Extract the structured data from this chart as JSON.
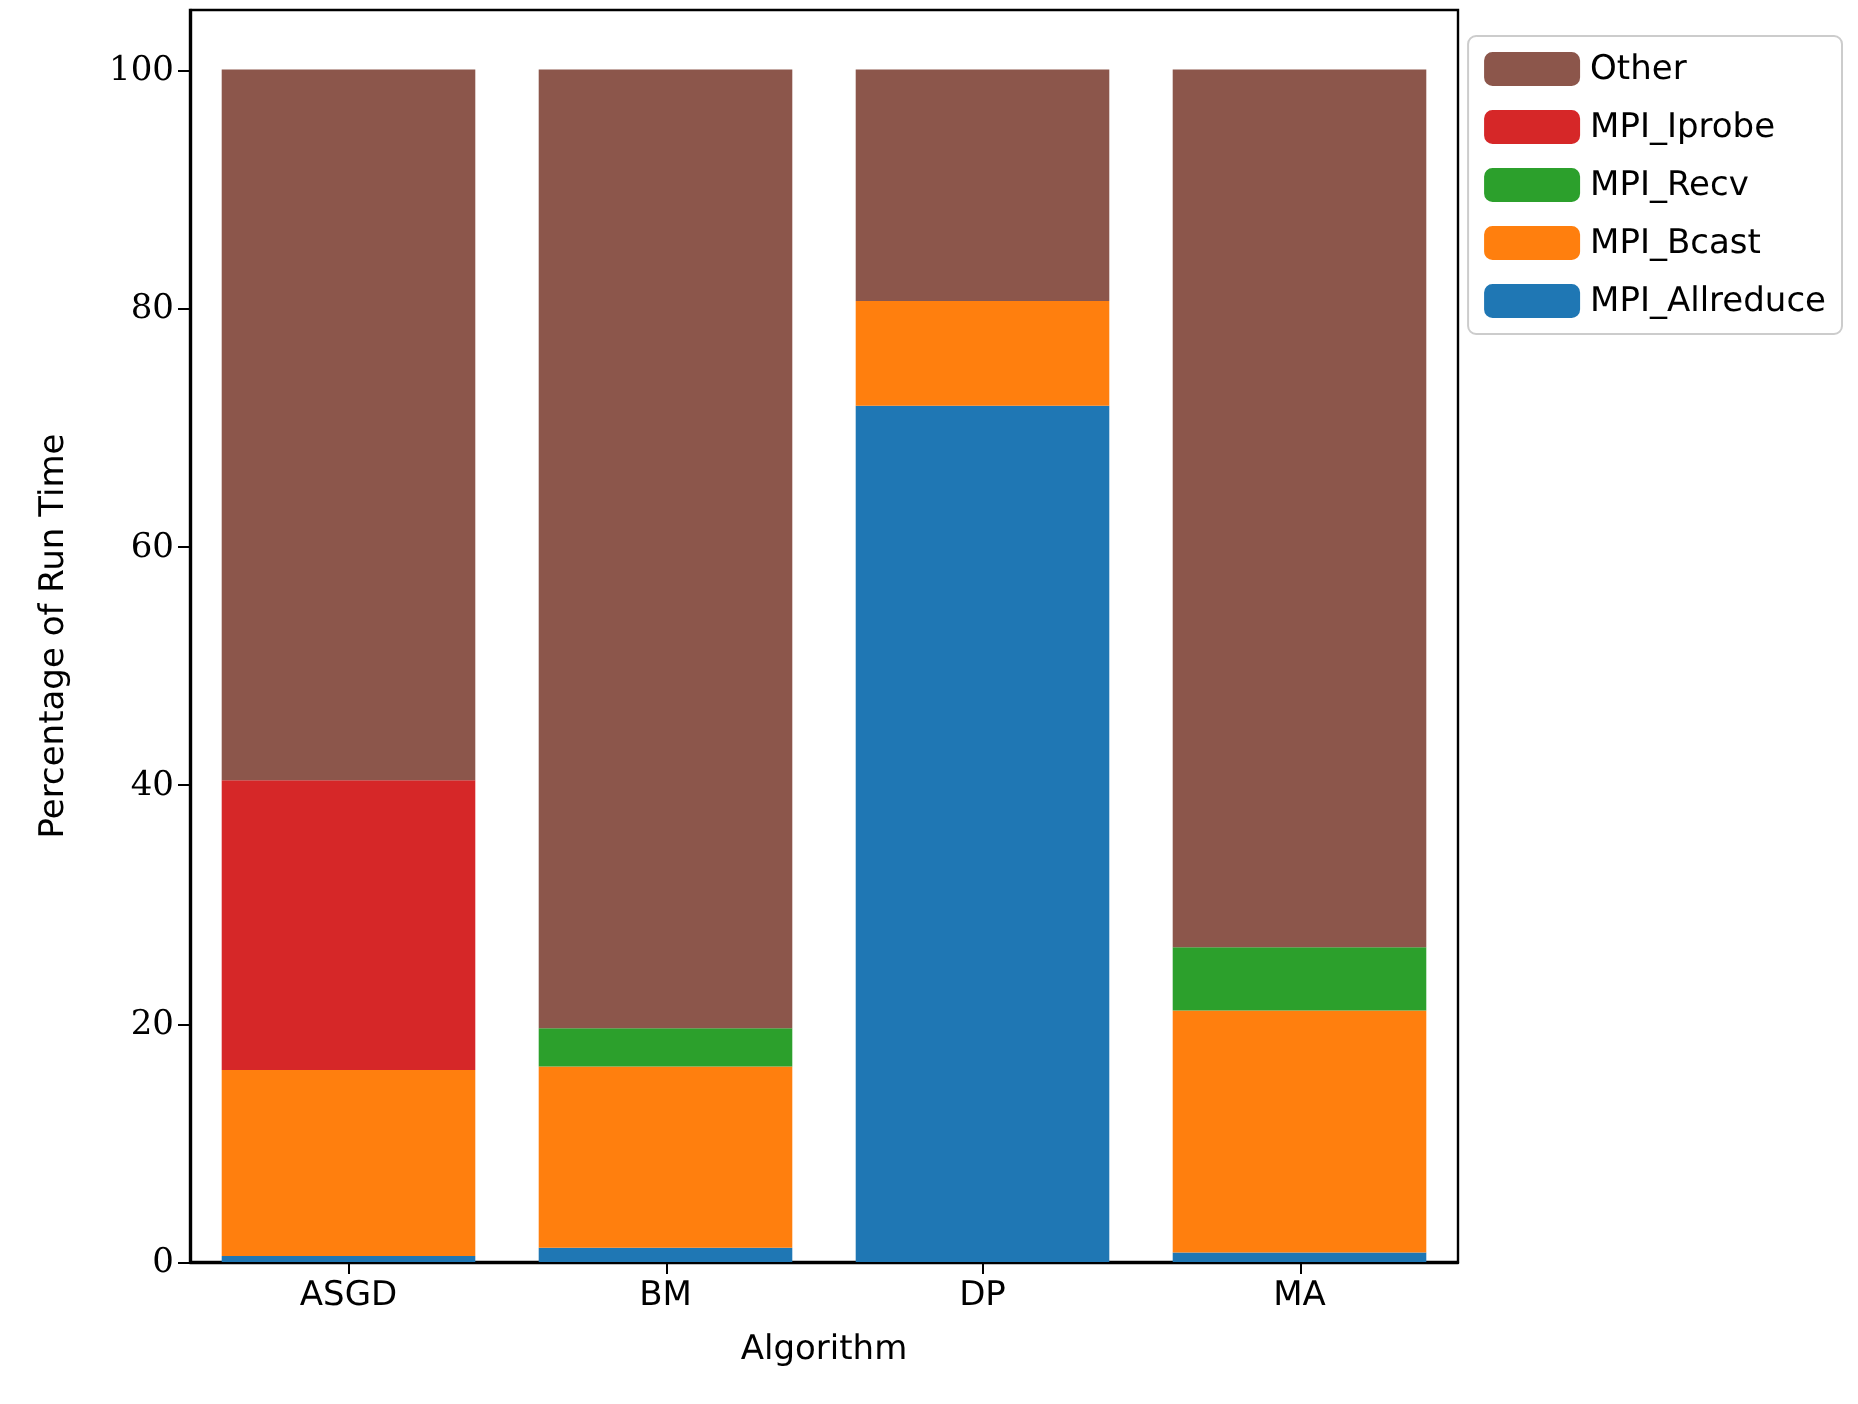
{
  "chart_data": {
    "type": "bar",
    "stacked": true,
    "xlabel": "Algorithm",
    "ylabel": "Percentage of Run Time",
    "categories": [
      "ASGD",
      "BM",
      "DP",
      "MA"
    ],
    "series": [
      {
        "name": "MPI_Allreduce",
        "color": "#1f77b4",
        "values": [
          0.5,
          1.2,
          71.8,
          0.8
        ]
      },
      {
        "name": "MPI_Bcast",
        "color": "#ff7f0e",
        "values": [
          15.6,
          15.2,
          8.8,
          20.3
        ]
      },
      {
        "name": "MPI_Recv",
        "color": "#2ca02c",
        "values": [
          0,
          3.2,
          0,
          5.3
        ]
      },
      {
        "name": "MPI_Iprobe",
        "color": "#d62728",
        "values": [
          24.3,
          0,
          0,
          0
        ]
      },
      {
        "name": "Other",
        "color": "#8c564b",
        "values": [
          59.6,
          80.4,
          19.4,
          73.6
        ]
      }
    ],
    "ylim": [
      0,
      105
    ],
    "yticks": [
      0,
      20,
      40,
      60,
      80,
      100
    ],
    "grid": false,
    "legend": "top right"
  }
}
